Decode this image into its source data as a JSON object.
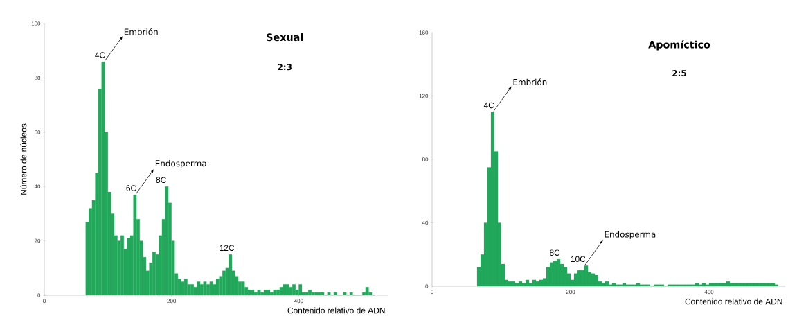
{
  "chart_data": [
    {
      "type": "histogram",
      "title": "Sexual",
      "subtitle": "2:3",
      "xlabel": "Contenido relativo de ADN",
      "ylabel": "Número de núcleos",
      "color": "#22a85a",
      "bins": [
        65,
        70,
        75,
        80,
        85,
        90,
        95,
        100,
        105,
        110,
        115,
        120,
        125,
        130,
        135,
        140,
        145,
        150,
        155,
        160,
        165,
        170,
        175,
        180,
        185,
        190,
        195,
        200,
        205,
        210,
        215,
        220,
        225,
        230,
        235,
        240,
        245,
        250,
        255,
        260,
        265,
        270,
        275,
        280,
        285,
        290,
        295,
        300,
        305,
        310,
        315,
        320,
        325,
        330,
        335,
        340,
        345,
        350,
        355,
        360,
        365,
        370,
        375,
        380,
        385,
        390,
        395,
        400,
        405,
        410,
        415,
        420,
        425,
        430,
        435,
        440,
        445,
        450,
        455,
        460,
        465,
        470,
        475,
        480,
        485,
        490,
        495,
        500,
        505,
        510,
        515,
        520
      ],
      "values": [
        27,
        32,
        35,
        45,
        76,
        86,
        60,
        38,
        30,
        22,
        20,
        22,
        17,
        21,
        22,
        37,
        28,
        20,
        14,
        9,
        12,
        16,
        15,
        22,
        28,
        40,
        34,
        20,
        8,
        6,
        5,
        6,
        4,
        4,
        3,
        5,
        4,
        5,
        4,
        5,
        4,
        6,
        7,
        9,
        10,
        15,
        9,
        7,
        5,
        5,
        3,
        2,
        2,
        1,
        2,
        1,
        2,
        2,
        1,
        2,
        2,
        3,
        4,
        4,
        3,
        4,
        2,
        4,
        1,
        1,
        2,
        1,
        1,
        1,
        1,
        0,
        1,
        0,
        1,
        0,
        0,
        1,
        0,
        1,
        0,
        0,
        0,
        1,
        3,
        1,
        0
      ],
      "xlim": [
        0,
        540
      ],
      "ylim": [
        0,
        100
      ],
      "xticks": [
        0,
        200,
        400
      ],
      "yticks": [
        0,
        20,
        40,
        60,
        80,
        100
      ],
      "annotations": [
        {
          "text": "4C",
          "x": 94,
          "y": 86
        },
        {
          "text": "Embrión",
          "x": 94,
          "y": 86
        },
        {
          "text": "6C",
          "x": 143,
          "y": 37
        },
        {
          "text": "Endosperma",
          "x": 143,
          "y": 37
        },
        {
          "text": "8C",
          "x": 190,
          "y": 40
        },
        {
          "text": "12C",
          "x": 297,
          "y": 15
        }
      ]
    },
    {
      "type": "histogram",
      "title": "Apomíctico",
      "subtitle": "2:5",
      "xlabel": "Contenido relativo de ADN",
      "color": "#22a85a",
      "bins": [
        65,
        70,
        75,
        80,
        85,
        90,
        95,
        100,
        105,
        110,
        115,
        120,
        125,
        130,
        135,
        140,
        145,
        150,
        155,
        160,
        165,
        170,
        175,
        180,
        185,
        190,
        195,
        200,
        205,
        210,
        215,
        220,
        225,
        230,
        235,
        240,
        245,
        250,
        255,
        260,
        265,
        270,
        275,
        280,
        285,
        290,
        295,
        300,
        305,
        310,
        315,
        320,
        325,
        330,
        335,
        340,
        345,
        350,
        355,
        360,
        365,
        370,
        375,
        380,
        385,
        390,
        395,
        400,
        405,
        410,
        415,
        420,
        425,
        430,
        435,
        440,
        445,
        450,
        455,
        460,
        465,
        470,
        475,
        480,
        485,
        490,
        495,
        500
      ],
      "values": [
        12,
        20,
        40,
        75,
        110,
        85,
        40,
        14,
        4,
        3,
        3,
        2,
        3,
        2,
        4,
        2,
        4,
        3,
        4,
        5,
        12,
        15,
        16,
        17,
        14,
        12,
        8,
        4,
        8,
        10,
        10,
        13,
        9,
        8,
        7,
        3,
        2,
        3,
        1,
        2,
        1,
        1,
        2,
        1,
        1,
        1,
        2,
        1,
        1,
        1,
        0,
        1,
        1,
        1,
        0,
        1,
        1,
        1,
        1,
        1,
        1,
        1,
        1,
        2,
        1,
        2,
        1,
        2,
        2,
        2,
        2,
        2,
        3,
        2,
        2,
        2,
        2,
        2,
        2,
        2,
        2,
        2,
        2,
        2,
        2,
        2,
        1
      ],
      "xlim": [
        0,
        510
      ],
      "ylim": [
        0,
        160
      ],
      "xticks": [
        0,
        200,
        400
      ],
      "yticks": [
        0,
        40,
        80,
        120,
        160
      ],
      "annotations": [
        {
          "text": "4C",
          "x": 88,
          "y": 110
        },
        {
          "text": "Embrión",
          "x": 88,
          "y": 110
        },
        {
          "text": "8C",
          "x": 183,
          "y": 17
        },
        {
          "text": "10C",
          "x": 220,
          "y": 13
        },
        {
          "text": "Endosperma",
          "x": 220,
          "y": 13
        }
      ]
    }
  ]
}
